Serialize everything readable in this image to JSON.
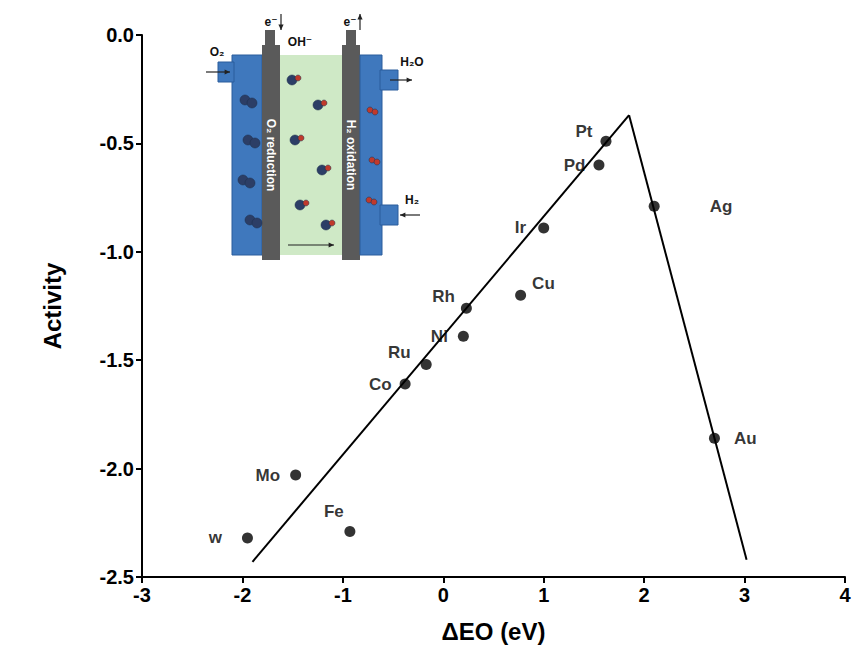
{
  "chart_data": {
    "type": "scatter",
    "xlabel": "ΔEO (eV)",
    "ylabel": "Activity",
    "x": [
      -1.95,
      -1.47,
      -0.93,
      -0.38,
      -0.17,
      0.2,
      0.23,
      0.77,
      1.0,
      1.55,
      1.62,
      2.1,
      2.7
    ],
    "values": [
      -2.32,
      -2.03,
      -2.29,
      -1.61,
      -1.52,
      -1.39,
      -1.26,
      -1.2,
      -0.89,
      -0.6,
      -0.49,
      -0.79,
      -1.86
    ],
    "point_labels": [
      "w",
      "Mo",
      "Fe",
      "Co",
      "Ru",
      "Ni",
      "Rh",
      "Cu",
      "Ir",
      "Pd",
      "Pt",
      "Ag",
      "Au"
    ],
    "color": "#000000",
    "marker": "circle",
    "lines": [
      {
        "x": [
          -1.9,
          1.85
        ],
        "values": [
          -2.43,
          -0.37
        ],
        "color": "#000000",
        "line_style": "solid"
      },
      {
        "x": [
          1.85,
          3.02
        ],
        "values": [
          -0.37,
          -2.42
        ],
        "color": "#000000",
        "line_style": "solid"
      }
    ],
    "xlim": [
      -3,
      4
    ],
    "xticks": [
      -3,
      -2,
      -1,
      0,
      1,
      2,
      3,
      4
    ],
    "ylim": [
      -2.5,
      0
    ],
    "yticks": [
      {
        "value": -2.5,
        "label": "-2.5"
      },
      {
        "value": -2,
        "label": "-2.0"
      },
      -1.5,
      {
        "value": -1,
        "label": "-1.0"
      },
      -0.5,
      {
        "value": 0,
        "label": "0.0"
      }
    ],
    "grid": false,
    "inset": {
      "oxygen_in": "O₂",
      "water_out": "H₂O",
      "hydrogen_in": "H₂",
      "electrolyte_ion": "OH⁻",
      "electron_in": "e⁻",
      "electron_out": "e⁻",
      "cathode": "O₂ reduction",
      "anode": "H₂ oxidation"
    }
  }
}
